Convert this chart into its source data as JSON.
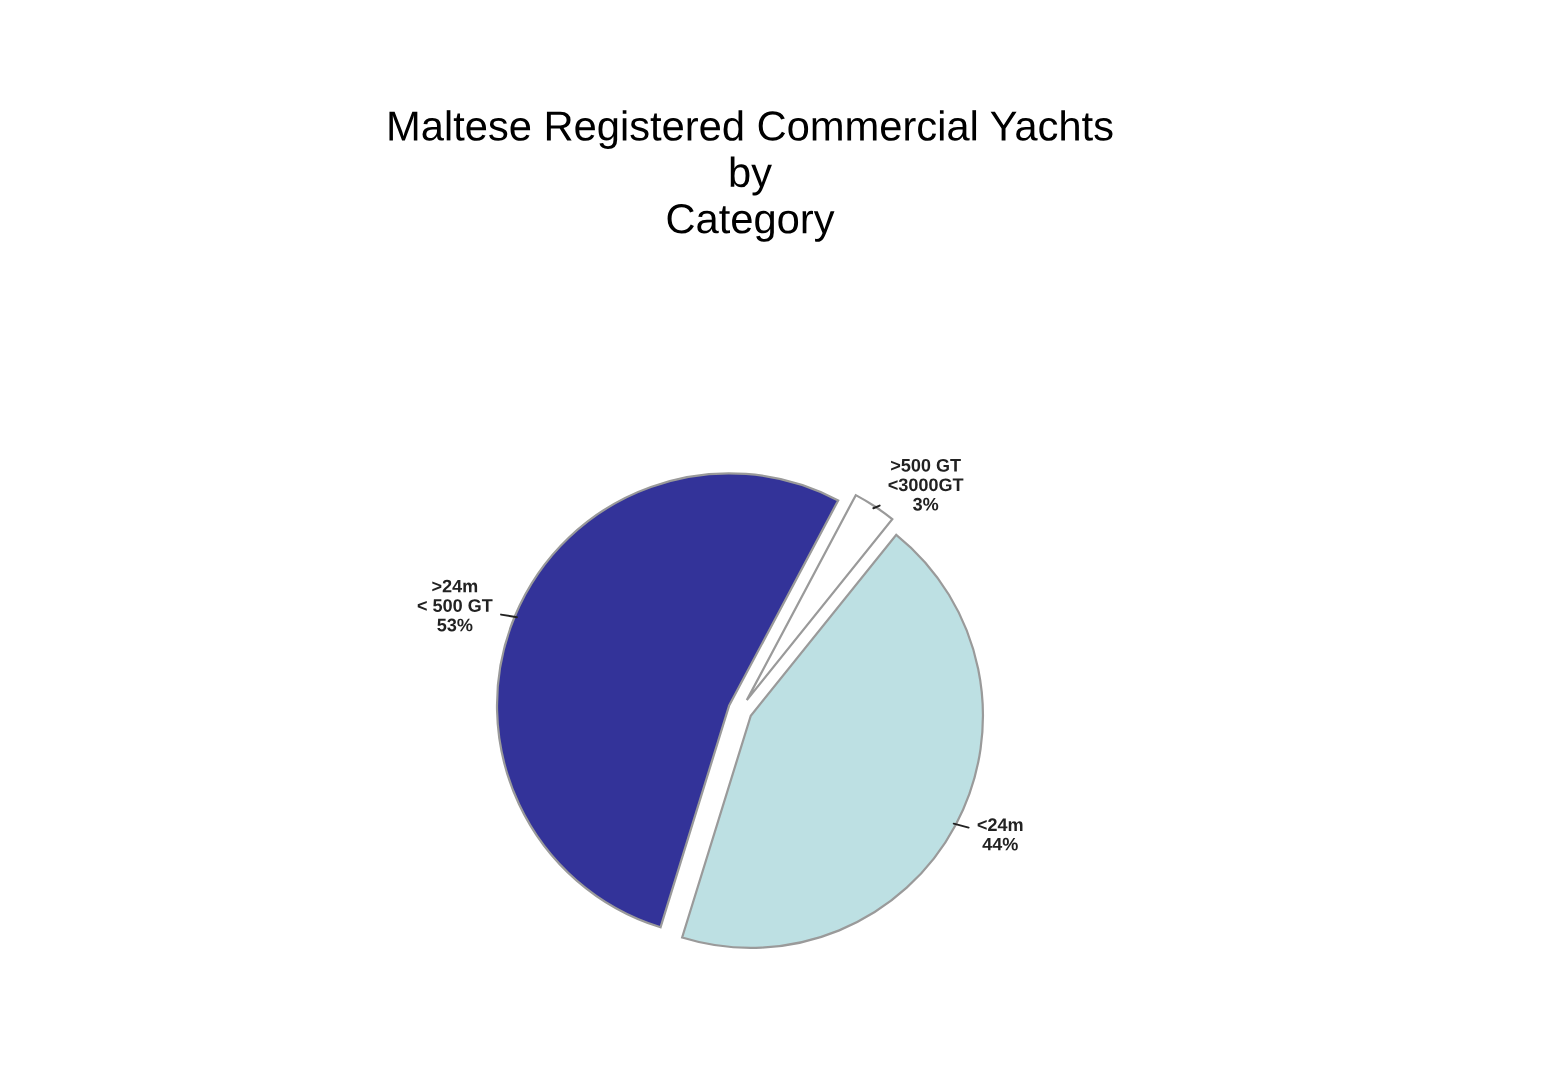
{
  "chart_data": {
    "type": "pie",
    "title": "Maltese Registered Commercial Yachts\nby\nCategory",
    "categories": [
      ">500 GT\n<3000GT",
      "<24m",
      ">24m\n< 500 GT"
    ],
    "values": [
      3,
      44,
      53
    ],
    "value_labels": [
      "3%",
      "44%",
      "53%"
    ],
    "colors": [
      "#ffffff",
      "#bde0e3",
      "#333399"
    ],
    "legend": false
  }
}
